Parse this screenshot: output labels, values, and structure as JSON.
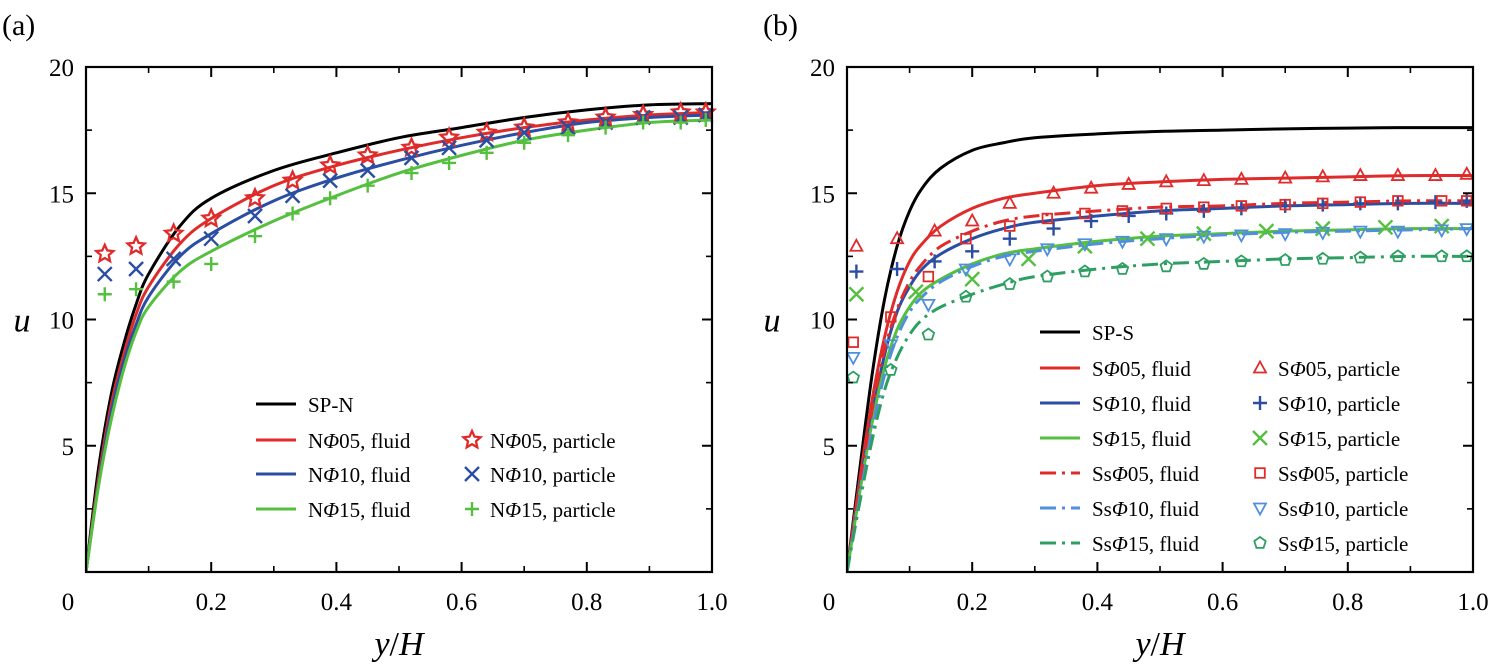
{
  "colors": {
    "black": "#000000",
    "red": "#e02b2b",
    "blue": "#2b4ea2",
    "green": "#55bf3f",
    "lightblue": "#4f8fdc",
    "darkgreen": "#2e9f63"
  },
  "chart_data": [
    {
      "type": "line",
      "panel_label": "(a)",
      "xlabel": "y/H",
      "ylabel": "u",
      "xlim": [
        0,
        1.0
      ],
      "ylim": [
        0,
        20
      ],
      "xticks": [
        "0",
        "0.2",
        "0.4",
        "0.6",
        "0.8",
        "1.0"
      ],
      "yticks": [
        "5",
        "10",
        "15",
        "20"
      ],
      "grid": false,
      "legend_position": "bottom-right",
      "series": [
        {
          "name": "SP-N",
          "kind": "line",
          "style": "solid",
          "color": "#000000",
          "x": [
            0,
            0.02,
            0.04,
            0.06,
            0.08,
            0.1,
            0.15,
            0.2,
            0.3,
            0.4,
            0.5,
            0.6,
            0.7,
            0.8,
            0.9,
            1.0
          ],
          "y": [
            0,
            4.1,
            7.0,
            9.0,
            10.6,
            11.8,
            13.7,
            14.8,
            15.9,
            16.6,
            17.2,
            17.6,
            18.0,
            18.3,
            18.5,
            18.55
          ]
        },
        {
          "name": "NΦ05, fluid",
          "kind": "line",
          "style": "solid",
          "color": "#e02b2b",
          "x": [
            0,
            0.02,
            0.04,
            0.06,
            0.08,
            0.1,
            0.15,
            0.2,
            0.3,
            0.4,
            0.5,
            0.6,
            0.7,
            0.8,
            0.9,
            1.0
          ],
          "y": [
            0,
            3.7,
            6.6,
            8.6,
            10.2,
            11.3,
            13.0,
            14.0,
            15.3,
            16.1,
            16.7,
            17.2,
            17.6,
            17.9,
            18.1,
            18.2
          ]
        },
        {
          "name": "NΦ10, fluid",
          "kind": "line",
          "style": "solid",
          "color": "#2b4ea2",
          "x": [
            0,
            0.02,
            0.04,
            0.06,
            0.08,
            0.1,
            0.15,
            0.2,
            0.3,
            0.4,
            0.5,
            0.6,
            0.7,
            0.8,
            0.9,
            1.0
          ],
          "y": [
            0,
            3.5,
            6.3,
            8.3,
            9.8,
            10.9,
            12.5,
            13.4,
            14.7,
            15.6,
            16.3,
            16.9,
            17.4,
            17.8,
            18.0,
            18.1
          ]
        },
        {
          "name": "NΦ15, fluid",
          "kind": "line",
          "style": "solid",
          "color": "#55bf3f",
          "x": [
            0,
            0.02,
            0.04,
            0.06,
            0.08,
            0.1,
            0.15,
            0.2,
            0.3,
            0.4,
            0.5,
            0.6,
            0.7,
            0.8,
            0.9,
            1.0
          ],
          "y": [
            0,
            3.4,
            6.0,
            8.0,
            9.5,
            10.5,
            11.9,
            12.7,
            13.9,
            14.9,
            15.8,
            16.5,
            17.1,
            17.5,
            17.8,
            17.9
          ]
        },
        {
          "name": "NΦ05, particle",
          "kind": "marker",
          "marker": "star",
          "color": "#e02b2b",
          "x": [
            0.03,
            0.08,
            0.14,
            0.2,
            0.27,
            0.33,
            0.39,
            0.45,
            0.52,
            0.58,
            0.64,
            0.7,
            0.77,
            0.83,
            0.89,
            0.95,
            0.99
          ],
          "y": [
            12.6,
            12.9,
            13.4,
            14.0,
            14.8,
            15.5,
            16.1,
            16.5,
            16.8,
            17.2,
            17.4,
            17.6,
            17.8,
            18.0,
            18.1,
            18.2,
            18.2
          ]
        },
        {
          "name": "NΦ10, particle",
          "kind": "marker",
          "marker": "x",
          "color": "#2b4ea2",
          "x": [
            0.03,
            0.08,
            0.14,
            0.2,
            0.27,
            0.33,
            0.39,
            0.45,
            0.52,
            0.58,
            0.64,
            0.7,
            0.77,
            0.83,
            0.89,
            0.95,
            0.99
          ],
          "y": [
            11.8,
            12.0,
            12.4,
            13.2,
            14.1,
            14.9,
            15.5,
            15.9,
            16.4,
            16.8,
            17.1,
            17.4,
            17.6,
            17.8,
            18.0,
            18.0,
            18.1
          ]
        },
        {
          "name": "NΦ15, particle",
          "kind": "marker",
          "marker": "plus",
          "color": "#55bf3f",
          "x": [
            0.03,
            0.08,
            0.14,
            0.2,
            0.27,
            0.33,
            0.39,
            0.45,
            0.52,
            0.58,
            0.64,
            0.7,
            0.77,
            0.83,
            0.89,
            0.95,
            0.99
          ],
          "y": [
            11.0,
            11.2,
            11.5,
            12.2,
            13.3,
            14.2,
            14.8,
            15.3,
            15.8,
            16.2,
            16.6,
            17.0,
            17.3,
            17.6,
            17.8,
            17.8,
            17.9
          ]
        }
      ]
    },
    {
      "type": "line",
      "panel_label": "(b)",
      "xlabel": "y/H",
      "ylabel": "u",
      "xlim": [
        0,
        1.0
      ],
      "ylim": [
        0,
        20
      ],
      "xticks": [
        "0",
        "0.2",
        "0.4",
        "0.6",
        "0.8",
        "1.0"
      ],
      "yticks": [
        "5",
        "10",
        "15",
        "20"
      ],
      "grid": false,
      "legend_position": "bottom-right",
      "series": [
        {
          "name": "SP-S",
          "kind": "line",
          "style": "solid",
          "color": "#000000",
          "x": [
            0,
            0.02,
            0.04,
            0.06,
            0.08,
            0.1,
            0.12,
            0.15,
            0.2,
            0.25,
            0.3,
            0.4,
            0.5,
            0.6,
            0.7,
            0.8,
            0.9,
            1.0
          ],
          "y": [
            0,
            4.0,
            7.8,
            10.8,
            12.9,
            14.3,
            15.2,
            16.0,
            16.7,
            17.0,
            17.2,
            17.35,
            17.45,
            17.5,
            17.55,
            17.58,
            17.6,
            17.6
          ]
        },
        {
          "name": "SΦ05, fluid",
          "kind": "line",
          "style": "solid",
          "color": "#e02b2b",
          "x": [
            0,
            0.02,
            0.04,
            0.06,
            0.08,
            0.1,
            0.12,
            0.15,
            0.2,
            0.25,
            0.3,
            0.4,
            0.5,
            0.6,
            0.7,
            0.8,
            0.9,
            1.0
          ],
          "y": [
            0,
            3.6,
            6.8,
            9.3,
            11.1,
            12.3,
            13.0,
            13.7,
            14.4,
            14.8,
            15.0,
            15.3,
            15.45,
            15.55,
            15.6,
            15.65,
            15.7,
            15.7
          ]
        },
        {
          "name": "SΦ10, fluid",
          "kind": "line",
          "style": "solid",
          "color": "#2b4ea2",
          "x": [
            0,
            0.02,
            0.04,
            0.06,
            0.08,
            0.1,
            0.12,
            0.15,
            0.2,
            0.25,
            0.3,
            0.4,
            0.5,
            0.6,
            0.7,
            0.8,
            0.9,
            1.0
          ],
          "y": [
            0,
            3.3,
            6.2,
            8.6,
            10.3,
            11.3,
            12.0,
            12.6,
            13.2,
            13.6,
            13.85,
            14.1,
            14.3,
            14.4,
            14.5,
            14.55,
            14.6,
            14.6
          ]
        },
        {
          "name": "SΦ15, fluid",
          "kind": "line",
          "style": "solid",
          "color": "#55bf3f",
          "x": [
            0,
            0.02,
            0.04,
            0.06,
            0.08,
            0.1,
            0.12,
            0.15,
            0.2,
            0.25,
            0.3,
            0.4,
            0.5,
            0.6,
            0.7,
            0.8,
            0.9,
            1.0
          ],
          "y": [
            0,
            3.1,
            5.9,
            8.1,
            9.6,
            10.5,
            11.1,
            11.6,
            12.2,
            12.6,
            12.8,
            13.1,
            13.3,
            13.4,
            13.5,
            13.55,
            13.6,
            13.6
          ]
        },
        {
          "name": "SsΦ05, fluid",
          "kind": "line",
          "style": "dashdot",
          "color": "#e02b2b",
          "x": [
            0,
            0.02,
            0.04,
            0.06,
            0.08,
            0.1,
            0.12,
            0.15,
            0.2,
            0.25,
            0.3,
            0.4,
            0.5,
            0.6,
            0.7,
            0.8,
            0.9,
            1.0
          ],
          "y": [
            0,
            3.4,
            6.4,
            8.8,
            10.4,
            11.5,
            12.2,
            12.9,
            13.5,
            13.9,
            14.1,
            14.3,
            14.45,
            14.5,
            14.6,
            14.65,
            14.7,
            14.7
          ]
        },
        {
          "name": "SsΦ10, fluid",
          "kind": "line",
          "style": "dashdot",
          "color": "#4f8fdc",
          "x": [
            0,
            0.02,
            0.04,
            0.06,
            0.08,
            0.1,
            0.12,
            0.15,
            0.2,
            0.25,
            0.3,
            0.4,
            0.5,
            0.6,
            0.7,
            0.8,
            0.9,
            1.0
          ],
          "y": [
            0,
            2.9,
            5.6,
            7.8,
            9.3,
            10.3,
            10.9,
            11.5,
            12.1,
            12.5,
            12.7,
            13.0,
            13.2,
            13.35,
            13.45,
            13.5,
            13.55,
            13.6
          ]
        },
        {
          "name": "SsΦ15, fluid",
          "kind": "line",
          "style": "dashdot",
          "color": "#2e9f63",
          "x": [
            0,
            0.02,
            0.04,
            0.06,
            0.08,
            0.1,
            0.12,
            0.15,
            0.2,
            0.25,
            0.3,
            0.4,
            0.5,
            0.6,
            0.7,
            0.8,
            0.9,
            1.0
          ],
          "y": [
            0,
            2.7,
            5.2,
            7.2,
            8.5,
            9.4,
            10.0,
            10.5,
            11.0,
            11.4,
            11.7,
            12.0,
            12.2,
            12.3,
            12.4,
            12.45,
            12.5,
            12.5
          ]
        },
        {
          "name": "SΦ05, particle",
          "kind": "marker",
          "marker": "triangle-up",
          "color": "#e02b2b",
          "x": [
            0.015,
            0.08,
            0.14,
            0.2,
            0.26,
            0.33,
            0.39,
            0.45,
            0.51,
            0.57,
            0.63,
            0.7,
            0.76,
            0.82,
            0.88,
            0.94,
            0.99
          ],
          "y": [
            12.9,
            13.2,
            13.5,
            13.9,
            14.6,
            15.0,
            15.2,
            15.35,
            15.45,
            15.5,
            15.55,
            15.6,
            15.65,
            15.7,
            15.7,
            15.7,
            15.75
          ]
        },
        {
          "name": "SΦ10, particle",
          "kind": "marker",
          "marker": "plus",
          "color": "#2b4ea2",
          "x": [
            0.015,
            0.08,
            0.14,
            0.2,
            0.26,
            0.33,
            0.39,
            0.45,
            0.51,
            0.57,
            0.63,
            0.7,
            0.76,
            0.82,
            0.88,
            0.94,
            0.99
          ],
          "y": [
            11.9,
            12.0,
            12.3,
            12.7,
            13.2,
            13.6,
            13.9,
            14.1,
            14.2,
            14.3,
            14.4,
            14.5,
            14.55,
            14.6,
            14.6,
            14.65,
            14.7
          ]
        },
        {
          "name": "SΦ15, particle",
          "kind": "marker",
          "marker": "x",
          "color": "#55bf3f",
          "x": [
            0.015,
            0.11,
            0.2,
            0.29,
            0.38,
            0.48,
            0.57,
            0.67,
            0.76,
            0.86,
            0.95
          ],
          "y": [
            11.0,
            11.1,
            11.6,
            12.4,
            12.9,
            13.2,
            13.4,
            13.5,
            13.6,
            13.65,
            13.7
          ]
        },
        {
          "name": "SsΦ05, particle",
          "kind": "marker",
          "marker": "square",
          "color": "#e02b2b",
          "x": [
            0.01,
            0.07,
            0.13,
            0.19,
            0.26,
            0.32,
            0.38,
            0.44,
            0.51,
            0.57,
            0.63,
            0.7,
            0.76,
            0.82,
            0.88,
            0.95,
            0.99
          ],
          "y": [
            9.1,
            10.1,
            11.7,
            13.2,
            13.7,
            14.0,
            14.2,
            14.3,
            14.4,
            14.45,
            14.5,
            14.55,
            14.6,
            14.65,
            14.7,
            14.7,
            14.7
          ]
        },
        {
          "name": "SsΦ10, particle",
          "kind": "marker",
          "marker": "triangle-down",
          "color": "#4f8fdc",
          "x": [
            0.01,
            0.07,
            0.13,
            0.19,
            0.26,
            0.32,
            0.38,
            0.44,
            0.51,
            0.57,
            0.63,
            0.7,
            0.76,
            0.82,
            0.88,
            0.95,
            0.99
          ],
          "y": [
            8.5,
            9.0,
            10.6,
            12.0,
            12.4,
            12.8,
            13.0,
            13.1,
            13.2,
            13.3,
            13.35,
            13.4,
            13.45,
            13.5,
            13.5,
            13.55,
            13.6
          ]
        },
        {
          "name": "SsΦ15, particle",
          "kind": "marker",
          "marker": "pentagon",
          "color": "#2e9f63",
          "x": [
            0.01,
            0.07,
            0.13,
            0.19,
            0.26,
            0.32,
            0.38,
            0.44,
            0.51,
            0.57,
            0.63,
            0.7,
            0.76,
            0.82,
            0.88,
            0.95,
            0.99
          ],
          "y": [
            7.7,
            8.0,
            9.4,
            10.9,
            11.4,
            11.7,
            11.9,
            12.0,
            12.1,
            12.2,
            12.3,
            12.35,
            12.4,
            12.45,
            12.5,
            12.5,
            12.5
          ]
        }
      ]
    }
  ]
}
